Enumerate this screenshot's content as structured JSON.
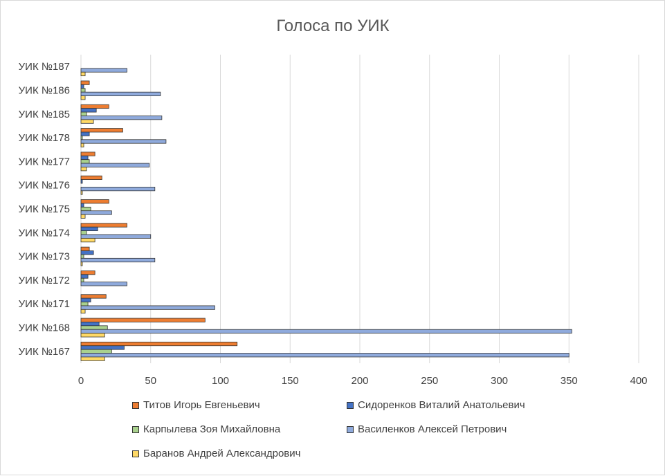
{
  "chart_data": {
    "type": "bar",
    "orientation": "horizontal",
    "title": "Голоса  по УИК",
    "categories": [
      "УИК №167",
      "УИК №168",
      "УИК №171",
      "УИК №172",
      "УИК №173",
      "УИК №174",
      "УИК №175",
      "УИК №176",
      "УИК №177",
      "УИК №178",
      "УИК №185",
      "УИК №186",
      "УИК №187"
    ],
    "series": [
      {
        "name": "Титов Игорь Евгеньевич",
        "color": "#ED7D31",
        "values": [
          112,
          89,
          18,
          10,
          6,
          33,
          20,
          15,
          10,
          30,
          20,
          6,
          0
        ]
      },
      {
        "name": "Сидоренков Виталий Анатольевич",
        "color": "#4472C4",
        "values": [
          31,
          13,
          7,
          5,
          9,
          12,
          2,
          1,
          5,
          6,
          11,
          2,
          0
        ]
      },
      {
        "name": "Карпылева Зоя Михайловна",
        "color": "#A9D18E",
        "values": [
          22,
          19,
          5,
          2,
          2,
          4,
          7,
          0,
          6,
          1,
          4,
          3,
          0
        ]
      },
      {
        "name": "Василенков Алексей Петрович",
        "color": "#8FAADC",
        "values": [
          350,
          352,
          96,
          33,
          53,
          50,
          22,
          53,
          49,
          61,
          58,
          57,
          33
        ]
      },
      {
        "name": "Баранов Андрей Александрович",
        "color": "#FFD966",
        "values": [
          17,
          17,
          3,
          0,
          1,
          10,
          3,
          1,
          4,
          2,
          9,
          3,
          3
        ]
      }
    ],
    "x_ticks": [
      "0",
      "50",
      "100",
      "150",
      "200",
      "250",
      "300",
      "350",
      "400"
    ],
    "xlim": [
      0,
      400
    ],
    "grid": true,
    "legend_position": "bottom"
  }
}
